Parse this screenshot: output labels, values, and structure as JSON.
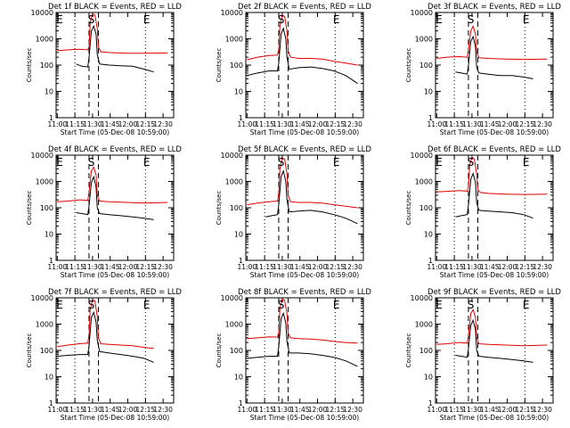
{
  "colors": {
    "events": "#000000",
    "lld": "#e00000",
    "axes": "#000000",
    "background": "#ffffff"
  },
  "chart_data": [
    {
      "type": "line",
      "title": "Det 1f BLACK = Events, RED = LLD",
      "xlabel": "Start Time (05-Dec-08 10:59:00)",
      "ylabel": "Counts/sec",
      "yscale": "log",
      "ylim": [
        1,
        10000
      ],
      "yticks": [
        "1",
        "10",
        "100",
        "1000",
        "10000"
      ],
      "xlim": [
        0,
        100
      ],
      "xticks": [
        "11:00",
        "11:15",
        "11:30",
        "11:45",
        "12:00",
        "12:15",
        "12:30"
      ],
      "xtick_positions": [
        1,
        16,
        31,
        46,
        61,
        76,
        91
      ],
      "dotted_lines": [
        16,
        76
      ],
      "dashed_lines": [
        28,
        36
      ],
      "markers": [
        {
          "label": "E",
          "x": 3
        },
        {
          "label": "S",
          "x": 30
        },
        {
          "label": "E",
          "x": 77
        }
      ],
      "series": [
        {
          "name": "BLACK = Events",
          "x": [
            17,
            22,
            27,
            28,
            30,
            32,
            34,
            35,
            37,
            45,
            55,
            65,
            75,
            83
          ],
          "y": [
            110,
            90,
            85,
            200,
            2000,
            3000,
            1500,
            250,
            110,
            100,
            95,
            90,
            70,
            55
          ]
        },
        {
          "name": "RED = LLD",
          "x": [
            1,
            10,
            20,
            27,
            28,
            29,
            31,
            33,
            35,
            36,
            38,
            45,
            60,
            75,
            95
          ],
          "y": [
            350,
            380,
            400,
            380,
            500,
            4000,
            9000,
            8000,
            2500,
            500,
            320,
            300,
            280,
            280,
            290
          ]
        }
      ]
    },
    {
      "type": "line",
      "title": "Det 2f BLACK = Events, RED = LLD",
      "xlabel": "Start Time (05-Dec-08 10:59:00)",
      "ylabel": "Counts/sec",
      "yscale": "log",
      "ylim": [
        1,
        10000
      ],
      "yticks": [
        "1",
        "10",
        "100",
        "1000",
        "10000"
      ],
      "xlim": [
        0,
        100
      ],
      "xticks": [
        "11:00",
        "11:15",
        "11:30",
        "11:45",
        "12:00",
        "12:15",
        "12:30"
      ],
      "xtick_positions": [
        1,
        16,
        31,
        46,
        61,
        76,
        91
      ],
      "dotted_lines": [
        16,
        76
      ],
      "dashed_lines": [
        28,
        36
      ],
      "markers": [
        {
          "label": "S",
          "x": 30
        },
        {
          "label": "E",
          "x": 77
        }
      ],
      "series": [
        {
          "name": "BLACK = Events",
          "x": [
            1,
            10,
            20,
            27,
            28,
            30,
            32,
            34,
            35,
            37,
            45,
            55,
            65,
            75,
            85,
            95
          ],
          "y": [
            40,
            50,
            60,
            60,
            120,
            1500,
            2500,
            1000,
            200,
            70,
            80,
            85,
            75,
            60,
            40,
            20
          ]
        },
        {
          "name": "RED = LLD",
          "x": [
            1,
            10,
            20,
            27,
            28,
            29,
            31,
            33,
            35,
            36,
            38,
            45,
            55,
            65,
            75,
            85,
            95
          ],
          "y": [
            160,
            200,
            230,
            240,
            400,
            3000,
            8000,
            7000,
            2000,
            350,
            200,
            180,
            180,
            170,
            140,
            120,
            100
          ]
        }
      ]
    },
    {
      "type": "line",
      "title": "Det 3f BLACK = Events, RED = LLD",
      "xlabel": "Start Time (05-Dec-08 10:59:00)",
      "ylabel": "Counts/sec",
      "yscale": "log",
      "ylim": [
        1,
        10000
      ],
      "yticks": [
        "1",
        "10",
        "100",
        "1000",
        "10000"
      ],
      "xlim": [
        0,
        100
      ],
      "xticks": [
        "11:00",
        "11:15",
        "11:30",
        "11:45",
        "12:00",
        "12:15",
        "12:30"
      ],
      "xtick_positions": [
        1,
        16,
        31,
        46,
        61,
        76,
        91
      ],
      "dotted_lines": [
        16,
        76
      ],
      "dashed_lines": [
        28,
        36
      ],
      "markers": [
        {
          "label": "E",
          "x": 3
        },
        {
          "label": "S",
          "x": 30
        },
        {
          "label": "E",
          "x": 77
        }
      ],
      "series": [
        {
          "name": "BLACK = Events",
          "x": [
            17,
            22,
            27,
            28,
            30,
            32,
            34,
            35,
            37,
            45,
            55,
            65,
            75,
            83
          ],
          "y": [
            55,
            50,
            45,
            100,
            800,
            1200,
            500,
            80,
            50,
            45,
            40,
            40,
            35,
            30
          ]
        },
        {
          "name": "RED = LLD",
          "x": [
            1,
            10,
            20,
            27,
            28,
            30,
            32,
            34,
            35,
            37,
            45,
            60,
            75,
            95
          ],
          "y": [
            180,
            200,
            210,
            200,
            400,
            2000,
            3000,
            1500,
            300,
            190,
            180,
            170,
            165,
            170
          ]
        }
      ]
    },
    {
      "type": "line",
      "title": "Det 4f BLACK = Events, RED = LLD",
      "xlabel": "Start Time (05-Dec-08 10:59:00)",
      "ylabel": "Counts/sec",
      "yscale": "log",
      "ylim": [
        1,
        10000
      ],
      "yticks": [
        "1",
        "10",
        "100",
        "1000",
        "10000"
      ],
      "xlim": [
        0,
        100
      ],
      "xticks": [
        "11:00",
        "11:15",
        "11:30",
        "11:45",
        "12:00",
        "12:15",
        "12:30"
      ],
      "xtick_positions": [
        1,
        16,
        31,
        46,
        61,
        76,
        91
      ],
      "dotted_lines": [
        16,
        76
      ],
      "dashed_lines": [
        28,
        36
      ],
      "markers": [
        {
          "label": "E",
          "x": 3
        },
        {
          "label": "S",
          "x": 30
        },
        {
          "label": "E",
          "x": 77
        }
      ],
      "series": [
        {
          "name": "BLACK = Events",
          "x": [
            17,
            22,
            27,
            28,
            30,
            32,
            34,
            35,
            37,
            45,
            55,
            65,
            75,
            83
          ],
          "y": [
            65,
            60,
            55,
            120,
            900,
            1500,
            600,
            100,
            60,
            55,
            50,
            45,
            40,
            35
          ]
        },
        {
          "name": "RED = LLD",
          "x": [
            1,
            10,
            20,
            27,
            28,
            30,
            32,
            34,
            35,
            37,
            45,
            60,
            75,
            95
          ],
          "y": [
            170,
            180,
            200,
            190,
            400,
            2500,
            3500,
            1800,
            300,
            180,
            170,
            160,
            150,
            160
          ]
        }
      ]
    },
    {
      "type": "line",
      "title": "Det 5f BLACK = Events, RED = LLD",
      "xlabel": "Start Time (05-Dec-08 10:59:00)",
      "ylabel": "Counts/sec",
      "yscale": "log",
      "ylim": [
        1,
        10000
      ],
      "yticks": [
        "1",
        "10",
        "100",
        "1000",
        "10000"
      ],
      "xlim": [
        0,
        100
      ],
      "xticks": [
        "11:00",
        "11:15",
        "11:30",
        "11:45",
        "12:00",
        "12:15",
        "12:30"
      ],
      "xtick_positions": [
        1,
        16,
        31,
        46,
        61,
        76,
        91
      ],
      "dotted_lines": [
        16,
        76
      ],
      "dashed_lines": [
        28,
        36
      ],
      "markers": [
        {
          "label": "S",
          "x": 30
        },
        {
          "label": "E",
          "x": 77
        }
      ],
      "series": [
        {
          "name": "BLACK = Events",
          "x": [
            17,
            22,
            27,
            28,
            30,
            32,
            34,
            35,
            37,
            45,
            55,
            65,
            75,
            85,
            95
          ],
          "y": [
            45,
            50,
            55,
            130,
            1500,
            2500,
            1000,
            200,
            70,
            75,
            80,
            70,
            55,
            40,
            25
          ]
        },
        {
          "name": "RED = LLD",
          "x": [
            1,
            10,
            20,
            27,
            28,
            29,
            31,
            33,
            35,
            36,
            38,
            45,
            55,
            65,
            75,
            85,
            95
          ],
          "y": [
            130,
            150,
            170,
            180,
            350,
            3000,
            8000,
            7000,
            2000,
            300,
            170,
            160,
            160,
            150,
            130,
            115,
            100
          ]
        }
      ]
    },
    {
      "type": "line",
      "title": "Det 6f BLACK = Events, RED = LLD",
      "xlabel": "Start Time (05-Dec-08 10:59:00)",
      "ylabel": "Counts/sec",
      "yscale": "log",
      "ylim": [
        1,
        10000
      ],
      "yticks": [
        "1",
        "10",
        "100",
        "1000",
        "10000"
      ],
      "xlim": [
        0,
        100
      ],
      "xticks": [
        "11:00",
        "11:15",
        "11:30",
        "11:45",
        "12:00",
        "12:15",
        "12:30"
      ],
      "xtick_positions": [
        1,
        16,
        31,
        46,
        61,
        76,
        91
      ],
      "dotted_lines": [
        16,
        76
      ],
      "dashed_lines": [
        28,
        36
      ],
      "markers": [
        {
          "label": "E",
          "x": 3
        },
        {
          "label": "S",
          "x": 30
        },
        {
          "label": "E",
          "x": 77
        }
      ],
      "series": [
        {
          "name": "BLACK = Events",
          "x": [
            17,
            22,
            27,
            28,
            30,
            32,
            34,
            35,
            37,
            45,
            55,
            65,
            75,
            83
          ],
          "y": [
            45,
            50,
            55,
            130,
            1200,
            2000,
            900,
            150,
            80,
            75,
            70,
            65,
            55,
            40
          ]
        },
        {
          "name": "RED = LLD",
          "x": [
            1,
            10,
            20,
            27,
            28,
            29,
            31,
            33,
            35,
            36,
            38,
            45,
            60,
            75,
            95
          ],
          "y": [
            400,
            420,
            450,
            430,
            600,
            4000,
            8500,
            7000,
            2000,
            500,
            380,
            350,
            330,
            320,
            330
          ]
        }
      ]
    },
    {
      "type": "line",
      "title": "Det 7f BLACK = Events, RED = LLD",
      "xlabel": "Start Time (05-Dec-08 10:59:00)",
      "ylabel": "Counts/sec",
      "yscale": "log",
      "ylim": [
        1,
        10000
      ],
      "yticks": [
        "1",
        "10",
        "100",
        "1000",
        "10000"
      ],
      "xlim": [
        0,
        100
      ],
      "xticks": [
        "11:00",
        "11:15",
        "11:30",
        "11:45",
        "12:00",
        "12:15",
        "12:30"
      ],
      "xtick_positions": [
        1,
        16,
        31,
        46,
        61,
        76,
        91
      ],
      "dotted_lines": [
        16,
        76
      ],
      "dashed_lines": [
        28,
        36
      ],
      "markers": [
        {
          "label": "E",
          "x": 3
        },
        {
          "label": "S",
          "x": 30
        },
        {
          "label": "E",
          "x": 77
        }
      ],
      "series": [
        {
          "name": "BLACK = Events",
          "x": [
            1,
            10,
            20,
            27,
            28,
            30,
            32,
            34,
            35,
            37,
            45,
            55,
            65,
            75,
            83
          ],
          "y": [
            60,
            65,
            70,
            70,
            150,
            1800,
            2800,
            1200,
            250,
            90,
            80,
            70,
            60,
            50,
            35
          ]
        },
        {
          "name": "RED = LLD",
          "x": [
            1,
            10,
            20,
            27,
            28,
            29,
            31,
            33,
            35,
            36,
            38,
            45,
            55,
            65,
            75,
            83
          ],
          "y": [
            140,
            160,
            180,
            190,
            400,
            3500,
            8500,
            7500,
            2000,
            300,
            180,
            170,
            160,
            150,
            130,
            120
          ]
        }
      ]
    },
    {
      "type": "line",
      "title": "Det 8f BLACK = Events, RED = LLD",
      "xlabel": "Start Time (05-Dec-08 10:59:00)",
      "ylabel": "Counts/sec",
      "yscale": "log",
      "ylim": [
        1,
        10000
      ],
      "yticks": [
        "1",
        "10",
        "100",
        "1000",
        "10000"
      ],
      "xlim": [
        0,
        100
      ],
      "xticks": [
        "11:00",
        "11:15",
        "11:30",
        "11:45",
        "12:00",
        "12:15",
        "12:30"
      ],
      "xtick_positions": [
        1,
        16,
        31,
        46,
        61,
        76,
        91
      ],
      "dotted_lines": [
        16,
        76
      ],
      "dashed_lines": [
        28,
        36
      ],
      "markers": [
        {
          "label": "S",
          "x": 30
        },
        {
          "label": "E",
          "x": 77
        }
      ],
      "series": [
        {
          "name": "BLACK = Events",
          "x": [
            1,
            10,
            20,
            27,
            28,
            30,
            32,
            34,
            35,
            37,
            45,
            55,
            65,
            75,
            85,
            95
          ],
          "y": [
            50,
            55,
            60,
            60,
            140,
            1600,
            2600,
            1100,
            220,
            80,
            80,
            75,
            65,
            55,
            40,
            25
          ]
        },
        {
          "name": "RED = LLD",
          "x": [
            1,
            10,
            20,
            27,
            28,
            29,
            31,
            33,
            35,
            36,
            38,
            45,
            55,
            65,
            75,
            85,
            95
          ],
          "y": [
            280,
            300,
            330,
            320,
            500,
            4000,
            9000,
            8000,
            2500,
            450,
            300,
            280,
            270,
            250,
            220,
            200,
            190
          ]
        }
      ]
    },
    {
      "type": "line",
      "title": "Det 9f BLACK = Events, RED = LLD",
      "xlabel": "Start Time (05-Dec-08 10:59:00)",
      "ylabel": "Counts/sec",
      "yscale": "log",
      "ylim": [
        1,
        10000
      ],
      "yticks": [
        "1",
        "10",
        "100",
        "1000",
        "10000"
      ],
      "xlim": [
        0,
        100
      ],
      "xticks": [
        "11:00",
        "11:15",
        "11:30",
        "11:45",
        "12:00",
        "12:15",
        "12:30"
      ],
      "xtick_positions": [
        1,
        16,
        31,
        46,
        61,
        76,
        91
      ],
      "dotted_lines": [
        16,
        76
      ],
      "dashed_lines": [
        28,
        36
      ],
      "markers": [
        {
          "label": "E",
          "x": 3
        },
        {
          "label": "S",
          "x": 30
        },
        {
          "label": "E",
          "x": 77
        }
      ],
      "series": [
        {
          "name": "BLACK = Events",
          "x": [
            17,
            22,
            27,
            28,
            30,
            32,
            34,
            35,
            37,
            45,
            55,
            65,
            75,
            83
          ],
          "y": [
            65,
            60,
            55,
            120,
            900,
            1400,
            600,
            100,
            60,
            55,
            50,
            45,
            40,
            35
          ]
        },
        {
          "name": "RED = LLD",
          "x": [
            1,
            10,
            20,
            27,
            28,
            30,
            32,
            34,
            35,
            37,
            45,
            60,
            75,
            95
          ],
          "y": [
            170,
            180,
            200,
            190,
            380,
            2500,
            3500,
            1800,
            300,
            180,
            170,
            160,
            150,
            160
          ]
        }
      ]
    }
  ]
}
